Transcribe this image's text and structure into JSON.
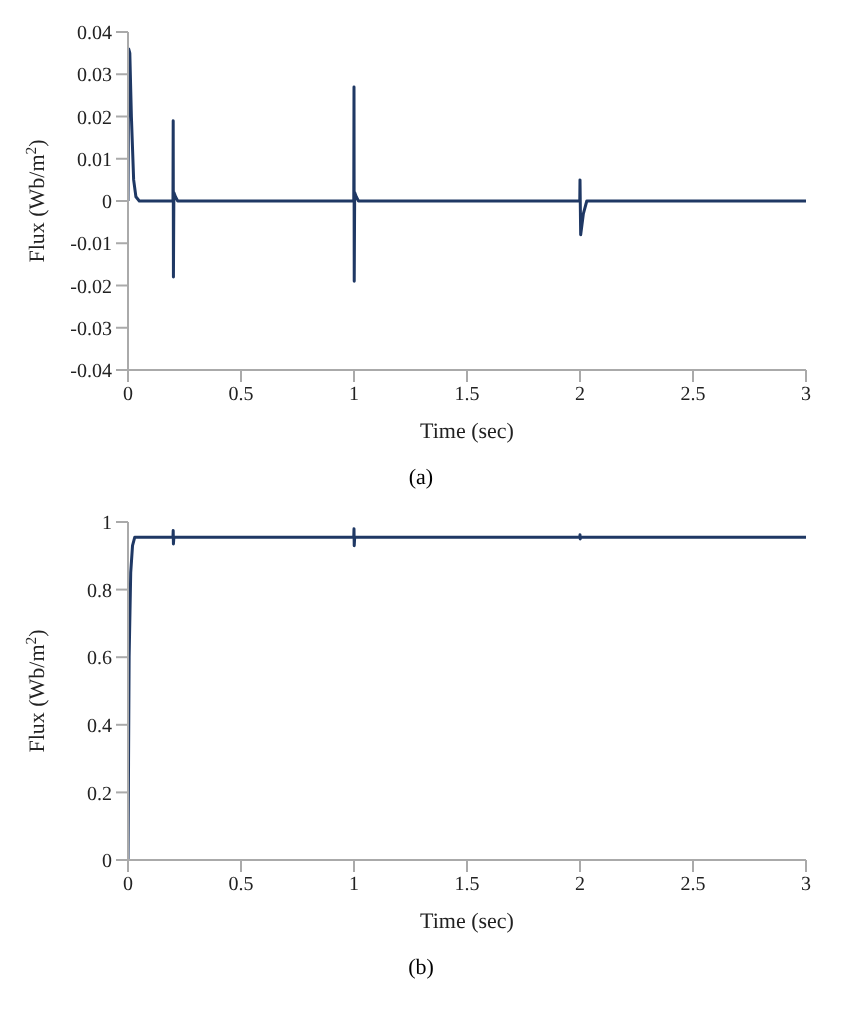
{
  "chart_data": [
    {
      "type": "line",
      "xlabel": "Time (sec)",
      "ylabel": "Flux (Wb/m$^{2}$)",
      "annotations": [
        "(a)"
      ],
      "series": [
        {
          "color": "#1f3864",
          "x": [
            0,
            0.003,
            0.008,
            0.015,
            0.025,
            0.035,
            0.05,
            0.199,
            0.2,
            0.201,
            0.203,
            0.21,
            0.22,
            0.999,
            1.0,
            1.001,
            1.003,
            1.01,
            1.02,
            1.999,
            2.0,
            2.003,
            2.015,
            2.03,
            3
          ],
          "values": [
            0,
            0.036,
            0.035,
            0.02,
            0.005,
            0.001,
            0,
            0,
            0.019,
            -0.018,
            0.002,
            0.001,
            0,
            0,
            0.027,
            -0.019,
            0.002,
            0.001,
            0,
            0,
            0.005,
            -0.008,
            -0.003,
            0,
            0
          ]
        }
      ],
      "xlim": [
        0,
        3
      ],
      "xticks": [
        0,
        0.5,
        1,
        1.5,
        2,
        2.5,
        3
      ],
      "ylim": [
        -0.04,
        0.04
      ],
      "yticks": [
        -0.04,
        -0.03,
        -0.02,
        -0.01,
        0,
        0.01,
        0.02,
        0.03,
        0.04
      ],
      "grid": false,
      "legend": false,
      "marker": "none",
      "line_style": "solid"
    },
    {
      "type": "line",
      "xlabel": "Time (sec)",
      "ylabel": "Flux (Wb/m$^{2}$)",
      "annotations": [
        "(b)"
      ],
      "series": [
        {
          "color": "#1f3864",
          "x": [
            0,
            0.005,
            0.012,
            0.02,
            0.03,
            0.199,
            0.2,
            0.201,
            0.203,
            0.999,
            1.0,
            1.001,
            1.003,
            1.999,
            2.0,
            2.001,
            2.003,
            3
          ],
          "values": [
            0,
            0.6,
            0.85,
            0.93,
            0.955,
            0.955,
            0.975,
            0.935,
            0.955,
            0.955,
            0.98,
            0.93,
            0.955,
            0.955,
            0.962,
            0.95,
            0.955,
            0.955
          ]
        }
      ],
      "xlim": [
        0,
        3
      ],
      "xticks": [
        0,
        0.5,
        1,
        1.5,
        2,
        2.5,
        3
      ],
      "ylim": [
        0,
        1
      ],
      "yticks": [
        0,
        0.2,
        0.4,
        0.6,
        0.8,
        1
      ],
      "grid": false,
      "legend": false,
      "marker": "none",
      "line_style": "solid"
    }
  ]
}
